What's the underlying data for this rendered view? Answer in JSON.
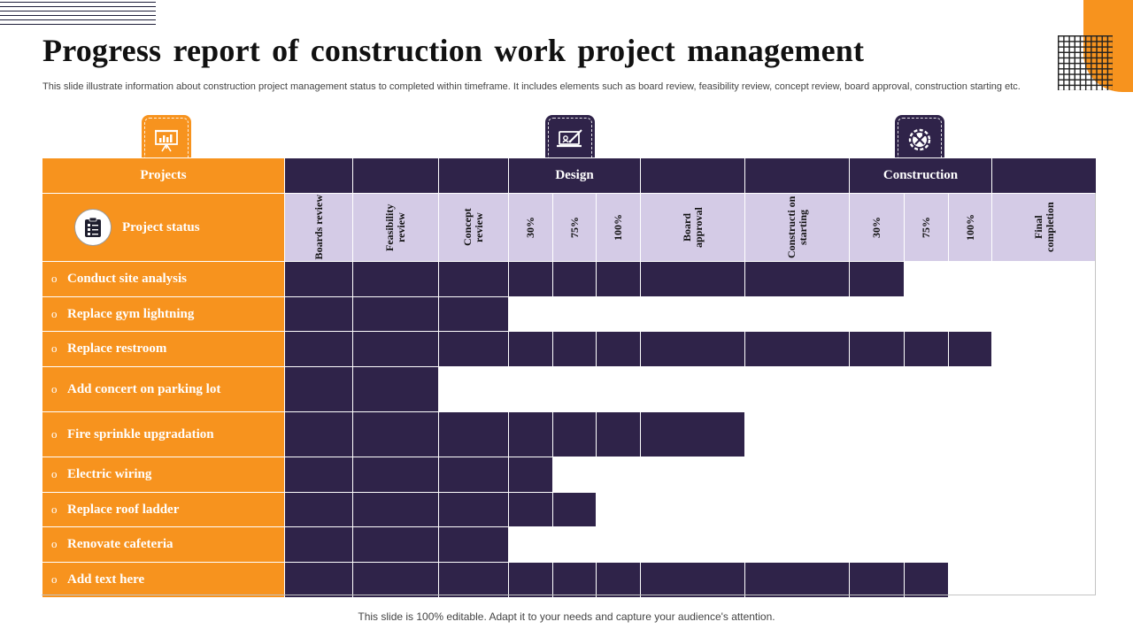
{
  "title": "Progress report of construction work project management",
  "subtitle": "This slide illustrate information about construction project management status to completed within timeframe. It includes elements such as board review, feasibility review, concept review, board approval, construction starting etc.",
  "footer": "This slide is 100% editable. Adapt it to your needs and capture your audience's attention.",
  "header": {
    "projects_label": "Projects",
    "design_label": "Design",
    "construction_label": "Construction",
    "status_label": "Project status"
  },
  "columns": [
    "Boards review",
    "Feasibility review",
    "Concept review",
    "30%",
    "75%",
    "100%",
    "Board approval",
    "Constructi on starting",
    "30%",
    "75%",
    "100%",
    "Final completion"
  ],
  "bullet": "o",
  "rows": [
    {
      "label": "Conduct  site analysis",
      "progress": 9
    },
    {
      "label": "Replace gym lightning",
      "progress": 3
    },
    {
      "label": "Replace restroom",
      "progress": 11
    },
    {
      "label": "Add concert on parking lot",
      "progress": 2
    },
    {
      "label": "Fire sprinkle upgradation",
      "progress": 7
    },
    {
      "label": "Electric wiring",
      "progress": 4
    },
    {
      "label": "Replace roof ladder",
      "progress": 5
    },
    {
      "label": "Renovate cafeteria",
      "progress": 3
    },
    {
      "label": "Add text here",
      "progress": 10
    }
  ],
  "colors": {
    "orange": "#f7931e",
    "purple": "#2f2349",
    "lavender": "#d4cbe6"
  },
  "icons": {
    "projects": "presentation-board-icon",
    "design": "design-laptop-icon",
    "construction": "construction-gear-icon",
    "status": "clipboard-checklist-icon"
  }
}
